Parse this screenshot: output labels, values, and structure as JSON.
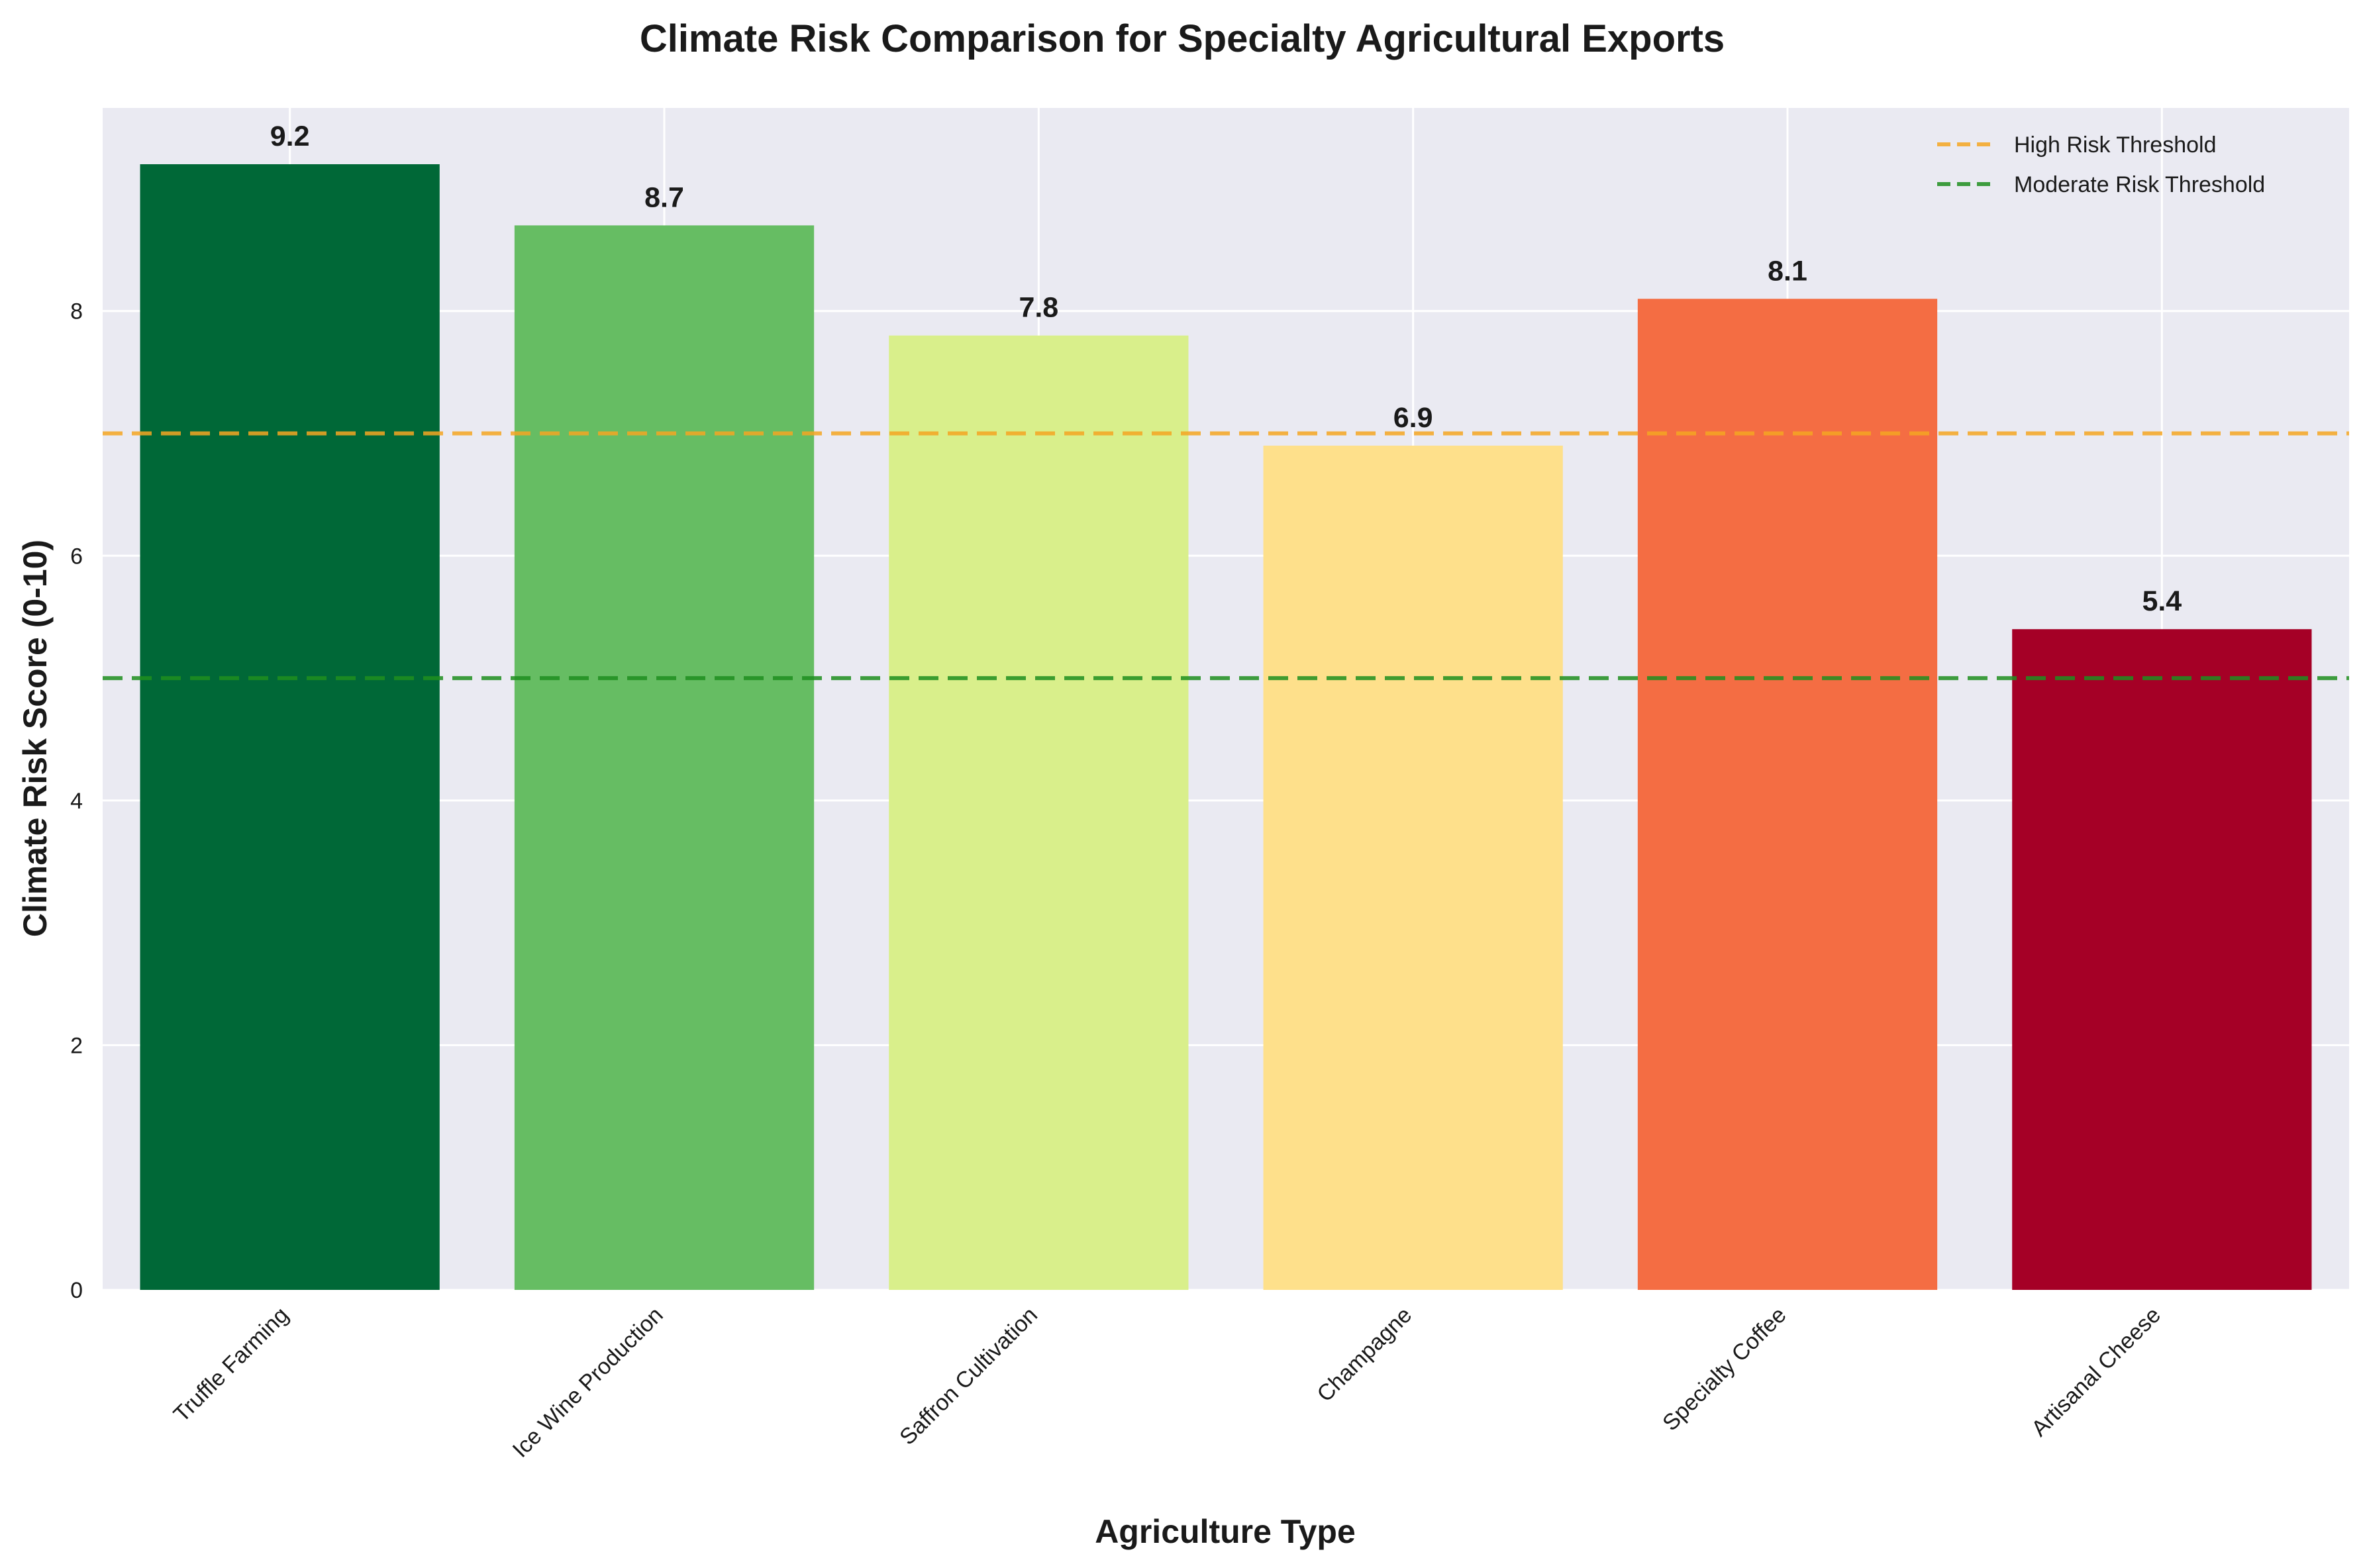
{
  "chart_data": {
    "type": "bar",
    "title": "Climate Risk Comparison for Specialty Agricultural Exports",
    "xlabel": "Agriculture Type",
    "ylabel": "Climate Risk Score (0-10)",
    "categories": [
      "Truffle Farming",
      "Ice Wine Production",
      "Saffron Cultivation",
      "Champagne",
      "Specialty Coffee",
      "Artisanal Cheese"
    ],
    "values": [
      9.2,
      8.7,
      7.8,
      6.9,
      8.1,
      5.4
    ],
    "value_labels": [
      "9.2",
      "8.7",
      "7.8",
      "6.9",
      "8.1",
      "5.4"
    ],
    "bar_colors": [
      "#006837",
      "#66bd63",
      "#d9ef8b",
      "#fee08b",
      "#f46d43",
      "#a50026"
    ],
    "ylim": [
      0,
      9.66
    ],
    "yticks": [
      0,
      2,
      4,
      6,
      8
    ],
    "ytick_labels": [
      "0",
      "2",
      "4",
      "6",
      "8"
    ],
    "grid": true,
    "legend_position": "top-right",
    "thresholds": [
      {
        "name": "High Risk Threshold",
        "value": 7,
        "color": "#f5a623"
      },
      {
        "name": "Moderate Risk Threshold",
        "value": 5,
        "color": "#1f8f1f"
      }
    ],
    "background_color": "#eaeaf2"
  }
}
